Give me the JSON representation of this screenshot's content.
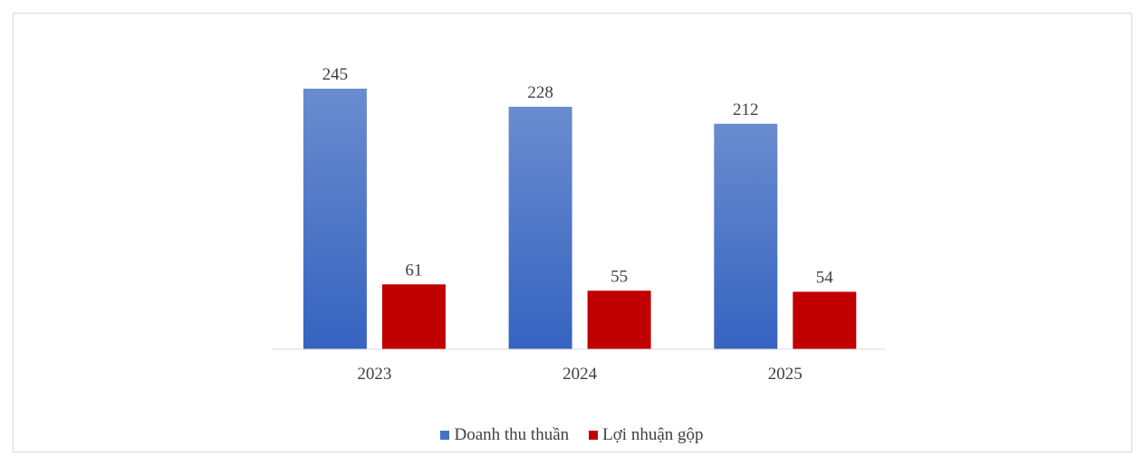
{
  "chart_data": {
    "type": "bar",
    "categories": [
      "2023",
      "2024",
      "2025"
    ],
    "series": [
      {
        "name": "Doanh thu thuần",
        "values": [
          245,
          228,
          212
        ],
        "color": "#4472c4"
      },
      {
        "name": "Lợi nhuận gộp",
        "values": [
          61,
          55,
          54
        ],
        "color": "#c00000"
      }
    ],
    "ylim": [
      0,
      245
    ],
    "grid": false,
    "legend_position": "bottom"
  }
}
